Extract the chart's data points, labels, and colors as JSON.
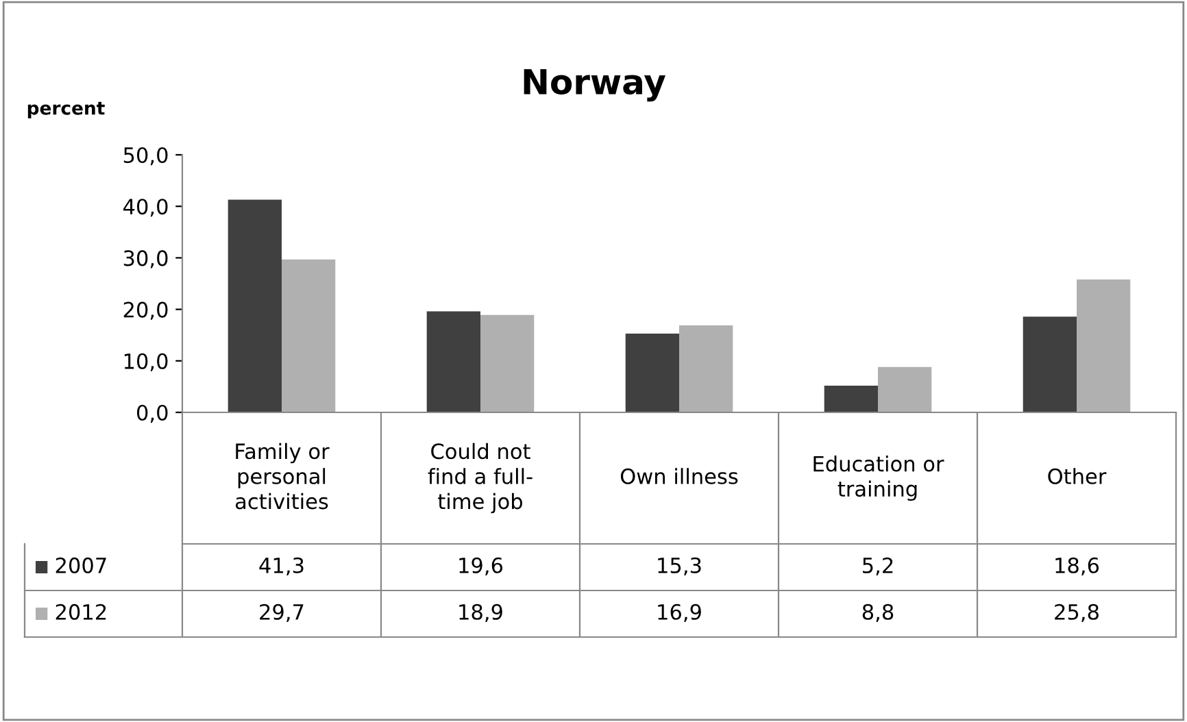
{
  "chart_data": {
    "type": "bar",
    "title": "Norway",
    "ylabel": "percent",
    "categories": [
      "Family or personal activities",
      "Could not find a full-time job",
      "Own illness",
      "Education or training",
      "Other"
    ],
    "series": [
      {
        "name": "2007",
        "color": "#404040",
        "values": [
          41.3,
          19.6,
          15.3,
          5.2,
          18.6
        ],
        "value_labels": [
          "41,3",
          "19,6",
          "15,3",
          "5,2",
          "18,6"
        ]
      },
      {
        "name": "2012",
        "color": "#b0b0b0",
        "values": [
          29.7,
          18.9,
          16.9,
          8.8,
          25.8
        ],
        "value_labels": [
          "29,7",
          "18,9",
          "16,9",
          "8,8",
          "25,8"
        ]
      }
    ],
    "ylim": [
      0,
      50
    ],
    "yticks": [
      {
        "value": 0,
        "label": "0,0"
      },
      {
        "value": 10,
        "label": "10,0"
      },
      {
        "value": 20,
        "label": "20,0"
      },
      {
        "value": 30,
        "label": "30,0"
      },
      {
        "value": 40,
        "label": "40,0"
      },
      {
        "value": 50,
        "label": "50,0"
      }
    ],
    "grid": false,
    "legend": "bottom left"
  }
}
